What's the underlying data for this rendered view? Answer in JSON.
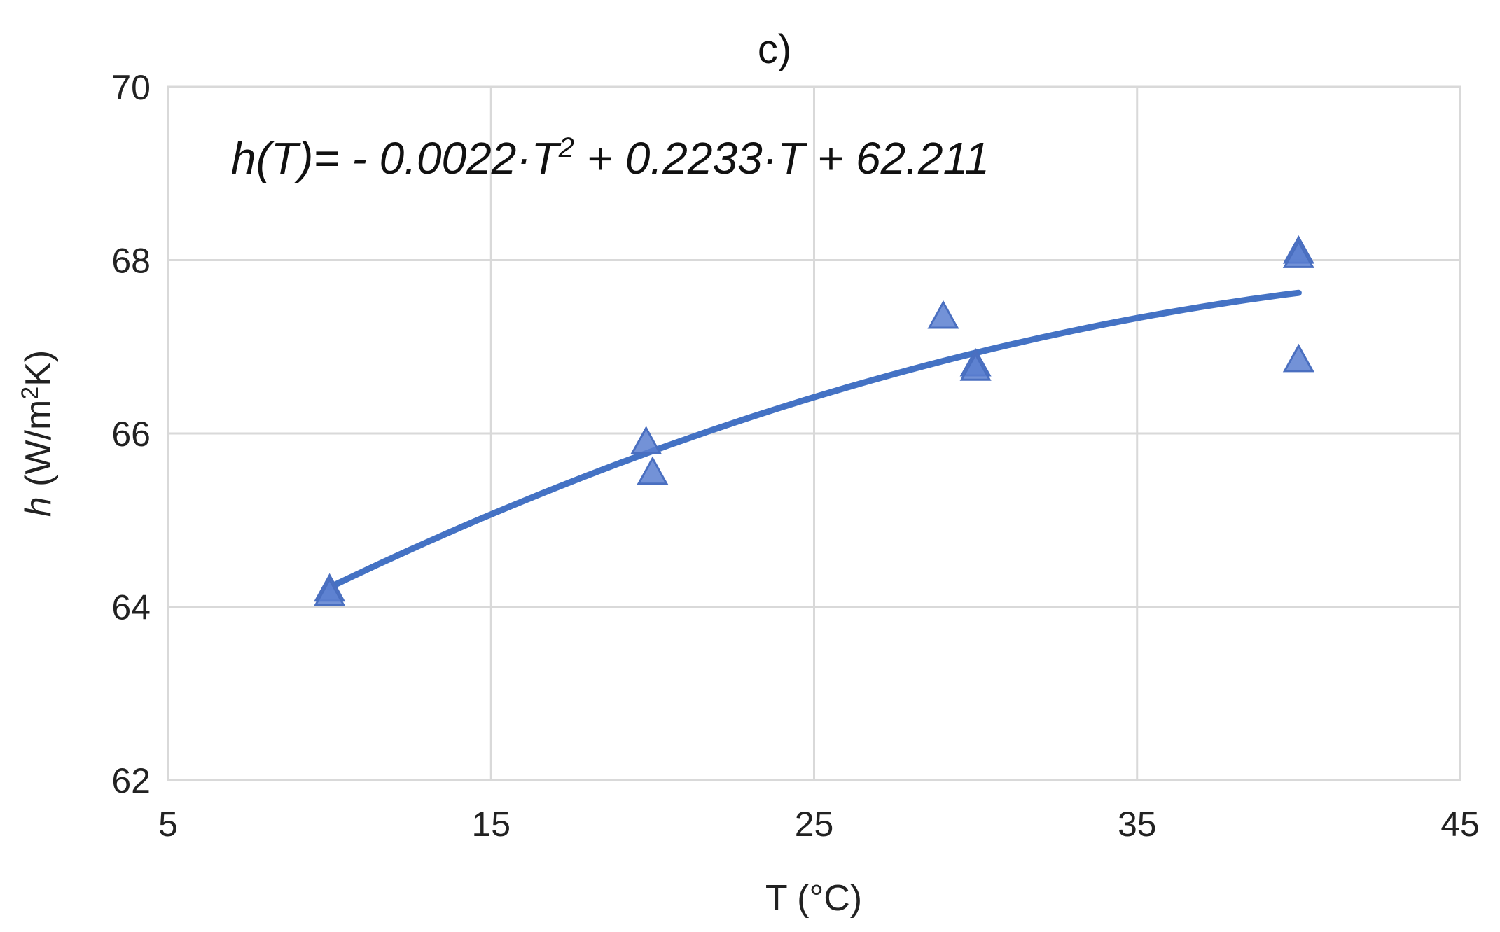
{
  "chart_data": {
    "type": "scatter",
    "title": "c)",
    "xlabel": "T (°C)",
    "ylabel": {
      "symbol": "h",
      "unit_pre": " (W/m",
      "unit_sup": "2",
      "unit_post": "K)"
    },
    "xlim": [
      5,
      45
    ],
    "ylim": [
      62,
      70
    ],
    "xticks": [
      5,
      15,
      25,
      35,
      45
    ],
    "yticks": [
      62,
      64,
      66,
      68,
      70
    ],
    "xtick_labels": [
      "5",
      "15",
      "25",
      "35",
      "45"
    ],
    "ytick_labels": [
      "62",
      "64",
      "66",
      "68",
      "70"
    ],
    "grid": true,
    "marker": "triangle",
    "marker_color": "#5b7fd0",
    "line_color": "#4472c4",
    "points": [
      {
        "x": 10,
        "y": 64.2
      },
      {
        "x": 10,
        "y": 64.15
      },
      {
        "x": 19.8,
        "y": 65.9
      },
      {
        "x": 20,
        "y": 65.55
      },
      {
        "x": 29,
        "y": 67.35
      },
      {
        "x": 30,
        "y": 66.8
      },
      {
        "x": 30,
        "y": 66.75
      },
      {
        "x": 40,
        "y": 68.1
      },
      {
        "x": 40,
        "y": 68.05
      },
      {
        "x": 40,
        "y": 66.85
      }
    ],
    "trendline": {
      "type": "polynomial",
      "coefficients": [
        62.211,
        0.2233,
        -0.0022
      ],
      "x_range": [
        10,
        40
      ],
      "equation": {
        "lhs": "h(T)=",
        "term1": " - 0.0022·T",
        "term1_sup": "2",
        "term2": " + 0.2233·T + 62.211"
      }
    }
  }
}
